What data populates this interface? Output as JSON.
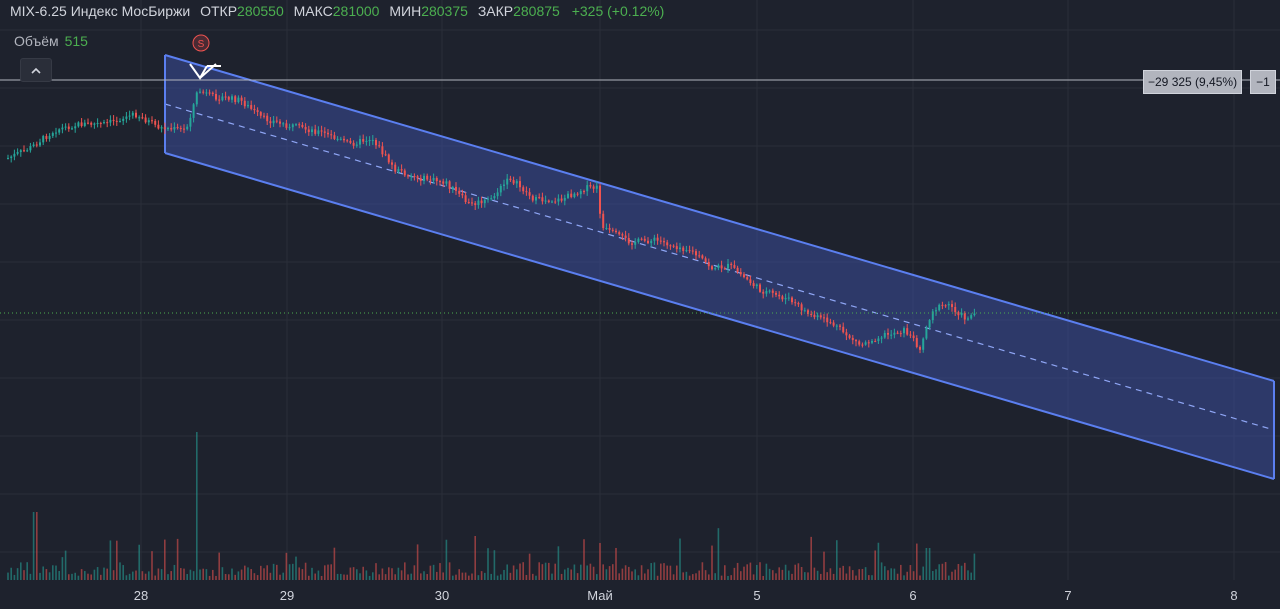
{
  "legend": {
    "symbol": "MIX-6.25 Индекс МосБиржи",
    "open_label": "ОТКР",
    "open_value": "280550",
    "high_label": "МАКС",
    "high_value": "281000",
    "low_label": "МИН",
    "low_value": "280375",
    "close_label": "ЗАКР",
    "close_value": "280875",
    "change": "+325 (+0.12%)"
  },
  "volume_legend": {
    "label": "Объём",
    "value": "515"
  },
  "collapse_icon": "chevron-up-icon",
  "signal_marker": "S",
  "measure": {
    "distance_text": "−29 325 (9,45%)",
    "bars_text": "−1"
  },
  "colors": {
    "background": "#1e222d",
    "up": "#26a69a",
    "down": "#ef5350",
    "channel_line": "#5b7ff0",
    "channel_fill": "#3a4d9a",
    "grid": "#2a2e39",
    "text": "#d1d4dc"
  },
  "chart_data": {
    "type": "candlestick",
    "grid": true,
    "x_ticks": [
      "28",
      "29",
      "30",
      "Май",
      "5",
      "6",
      "7",
      "8"
    ],
    "volume_legend_value": 515,
    "channel": {
      "kind": "parallel-channel-descending",
      "middle_line": "dashed"
    },
    "candles": [
      {
        "t": "28",
        "o": 280550,
        "h": 281000,
        "l": 280375,
        "c": 280875
      }
    ]
  }
}
